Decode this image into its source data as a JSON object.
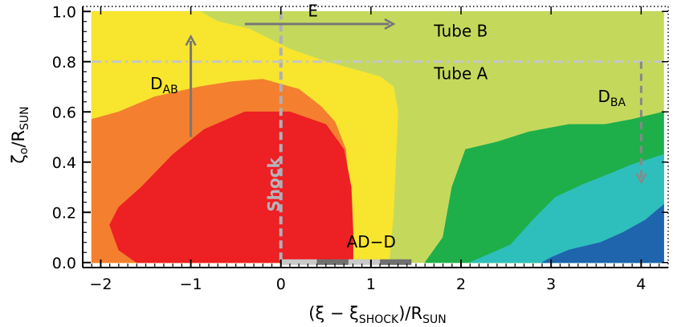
{
  "chart_data": {
    "type": "contour",
    "xlabel": {
      "prefix": "(ξ − ξ",
      "prefix_sub": "SHOCK",
      "middle": ")/R",
      "suffix_sub": "SUN"
    },
    "ylabel": {
      "main": "ζ",
      "main_sub": "o",
      "middle": "/R",
      "suffix_sub": "SUN"
    },
    "xlim": [
      -2.2,
      4.3
    ],
    "ylim": [
      -0.02,
      1.02
    ],
    "data_xlim": [
      -2.1,
      4.25
    ],
    "data_ylim": [
      0.0,
      1.0
    ],
    "xticks": [
      -2,
      -1,
      0,
      1,
      2,
      3,
      4
    ],
    "xtick_labels": [
      "−2",
      "−1",
      "0",
      "1",
      "2",
      "3",
      "4"
    ],
    "yticks": [
      0.0,
      0.2,
      0.4,
      0.6,
      0.8,
      1.0
    ],
    "ytick_labels": [
      "0.0",
      "0.2",
      "0.4",
      "0.6",
      "0.8",
      "1.0"
    ],
    "levels": [
      {
        "color": "#c4d95c",
        "boundary": [
          [
            -2.1,
            0
          ],
          [
            4.25,
            0
          ],
          [
            4.25,
            1
          ],
          [
            -2.1,
            1
          ]
        ]
      },
      {
        "color": "#f8e52e",
        "boundary": [
          [
            -2.1,
            0
          ],
          [
            1.2,
            0
          ],
          [
            1.25,
            0.2
          ],
          [
            1.28,
            0.45
          ],
          [
            1.3,
            0.6
          ],
          [
            1.25,
            0.7
          ],
          [
            1.1,
            0.74
          ],
          [
            0.8,
            0.77
          ],
          [
            0.5,
            0.8
          ],
          [
            0.1,
            0.85
          ],
          [
            -0.35,
            0.93
          ],
          [
            -0.7,
            0.96
          ],
          [
            -0.9,
            1.0
          ],
          [
            -2.1,
            1.0
          ]
        ]
      },
      {
        "color": "#f47f2e",
        "boundary": [
          [
            -2.1,
            0
          ],
          [
            0.75,
            0
          ],
          [
            0.78,
            0.1
          ],
          [
            0.75,
            0.3
          ],
          [
            0.72,
            0.45
          ],
          [
            0.6,
            0.56
          ],
          [
            0.45,
            0.62
          ],
          [
            0.2,
            0.69
          ],
          [
            -0.2,
            0.73
          ],
          [
            -0.55,
            0.72
          ],
          [
            -0.9,
            0.7
          ],
          [
            -1.4,
            0.66
          ],
          [
            -1.8,
            0.6
          ],
          [
            -2.1,
            0.57
          ]
        ]
      },
      {
        "color": "#ed2024",
        "boundary": [
          [
            -1.6,
            0
          ],
          [
            0.8,
            0
          ],
          [
            0.8,
            0.12
          ],
          [
            0.78,
            0.3
          ],
          [
            0.7,
            0.45
          ],
          [
            0.5,
            0.55
          ],
          [
            0.1,
            0.6
          ],
          [
            -0.4,
            0.6
          ],
          [
            -0.85,
            0.53
          ],
          [
            -1.2,
            0.43
          ],
          [
            -1.55,
            0.3
          ],
          [
            -1.8,
            0.22
          ],
          [
            -1.9,
            0.15
          ],
          [
            -1.8,
            0.05
          ]
        ]
      },
      {
        "color": "#1eaf4b",
        "boundary": [
          [
            1.6,
            0
          ],
          [
            4.25,
            0
          ],
          [
            4.25,
            0.6
          ],
          [
            3.9,
            0.57
          ],
          [
            3.6,
            0.55
          ],
          [
            3.2,
            0.55
          ],
          [
            2.75,
            0.52
          ],
          [
            2.4,
            0.48
          ],
          [
            2.05,
            0.45
          ],
          [
            1.9,
            0.3
          ],
          [
            1.8,
            0.1
          ]
        ]
      },
      {
        "color": "#2ebfbc",
        "boundary": [
          [
            2.1,
            0
          ],
          [
            4.25,
            0
          ],
          [
            4.25,
            0.43
          ],
          [
            3.9,
            0.39
          ],
          [
            3.7,
            0.36
          ],
          [
            3.35,
            0.31
          ],
          [
            3.05,
            0.26
          ],
          [
            2.8,
            0.17
          ],
          [
            2.55,
            0.07
          ]
        ]
      },
      {
        "color": "#1f65ae",
        "boundary": [
          [
            2.9,
            0
          ],
          [
            4.25,
            0
          ],
          [
            4.25,
            0.23
          ],
          [
            4.05,
            0.17
          ],
          [
            3.8,
            0.12
          ],
          [
            3.55,
            0.08
          ],
          [
            3.2,
            0.05
          ],
          [
            3.0,
            0.02
          ]
        ]
      }
    ],
    "reference_lines": [
      {
        "orientation": "vertical",
        "at": 0,
        "style": "dashed",
        "color": "#aeaeb8"
      },
      {
        "orientation": "horizontal",
        "at": 0.8,
        "style": "dashdot",
        "color": "#c6c6c6"
      }
    ],
    "arrows": [
      {
        "from": [
          -1.0,
          0.5
        ],
        "to": [
          -1.0,
          0.9
        ],
        "style": "solid",
        "color": "#777777"
      },
      {
        "from": [
          -0.4,
          0.95
        ],
        "to": [
          1.25,
          0.95
        ],
        "style": "solid",
        "color": "#777777"
      },
      {
        "from": [
          4.0,
          0.8
        ],
        "to": [
          4.0,
          0.32
        ],
        "style": "dashed",
        "color": "#888888"
      }
    ],
    "segments": [
      {
        "start": 0.0,
        "end": 0.4,
        "color": "#c9c9c9"
      },
      {
        "start": 0.4,
        "end": 0.75,
        "color": "#6f6f6f"
      },
      {
        "start": 0.75,
        "end": 1.1,
        "color": "#c9c9c9"
      },
      {
        "start": 1.1,
        "end": 1.45,
        "color": "#6f6f6f"
      }
    ],
    "annotations": [
      {
        "id": "tube_b",
        "text": "Tube B",
        "x": 1.7,
        "y": 0.9
      },
      {
        "id": "tube_a",
        "text": "Tube A",
        "x": 1.7,
        "y": 0.73
      },
      {
        "id": "e",
        "text": "E",
        "x": 0.3,
        "y": 0.98
      },
      {
        "id": "d_ab",
        "text": "D",
        "sub": "AB",
        "x": -1.45,
        "y": 0.69
      },
      {
        "id": "d_ba",
        "text": "D",
        "sub": "BA",
        "x": 3.52,
        "y": 0.64
      },
      {
        "id": "shock",
        "text": "Shock",
        "x": -0.08,
        "y": 0.31
      },
      {
        "id": "ad_d",
        "text": "AD−D",
        "x": 0.73,
        "y": 0.06
      }
    ]
  }
}
